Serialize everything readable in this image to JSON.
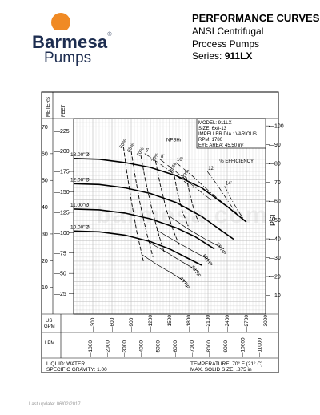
{
  "header": {
    "title": "PERFORMANCE CURVES",
    "line1": "ANSI Centrifugal",
    "line2": "Process Pumps",
    "series_label": "Series:",
    "series_model": "911LX"
  },
  "brand": {
    "name": "Barmesa",
    "reg": "®",
    "sub": "Pumps",
    "logo_icon": "sun-logo-icon",
    "colors": {
      "sun": "#f08a24",
      "text": "#1d2d50"
    }
  },
  "watermark": "barmesa.com",
  "footer": {
    "last_update": "Last update: 06/02/2017"
  },
  "chart_data": {
    "type": "line",
    "axis_units": {
      "meters": "METERS",
      "feet": "FEET",
      "psi": "PSI",
      "us_gpm": "US\nGPM",
      "lpm": "LPM"
    },
    "us_gpm_label1": "US",
    "us_gpm_label2": "GPM",
    "meters_ticks": [
      "70",
      "60",
      "50",
      "40",
      "30",
      "20",
      "10"
    ],
    "meters_values": [
      70,
      60,
      50,
      40,
      30,
      20,
      10
    ],
    "feet_ticks": [
      "225",
      "200",
      "175",
      "150",
      "125",
      "100",
      "75",
      "50",
      "25"
    ],
    "feet_values": [
      225,
      200,
      175,
      150,
      125,
      100,
      75,
      50,
      25
    ],
    "psi_ticks": [
      "100",
      "90",
      "80",
      "70",
      "60",
      "50",
      "40",
      "30",
      "20",
      "10"
    ],
    "psi_values": [
      100,
      90,
      80,
      70,
      60,
      50,
      40,
      30,
      20,
      10
    ],
    "gpm_ticks": [
      "300",
      "600",
      "900",
      "1200",
      "1500",
      "1800",
      "2100",
      "2400",
      "2700",
      "3000"
    ],
    "gpm_values": [
      300,
      600,
      900,
      1200,
      1500,
      1800,
      2100,
      2400,
      2700,
      3000
    ],
    "lpm_ticks": [
      "1000",
      "2000",
      "3000",
      "4000",
      "5000",
      "6000",
      "7000",
      "8000",
      "9000",
      "10000",
      "11000"
    ],
    "lpm_values": [
      1000,
      2000,
      3000,
      4000,
      5000,
      6000,
      7000,
      8000,
      9000,
      10000,
      11000
    ],
    "xlim_gpm": [
      0,
      3000
    ],
    "ylim_feet": [
      0,
      240
    ],
    "grid": true,
    "info_box": [
      "MODEL: 911LX",
      "SIZE:  6x8-13",
      "IMPELLER DIA.: VARIOUS",
      "RPM: 1780",
      "EYE AREA: 45.50  in²"
    ],
    "labels": {
      "npshr": "NPSHr",
      "efficiency": "% EFFICIENCY"
    },
    "series": [
      {
        "name": "13.00\"Ø",
        "x": [
          0,
          400,
          800,
          1200,
          1600,
          2000,
          2400,
          2700
        ],
        "y": [
          191,
          190,
          186,
          180,
          170,
          155,
          132,
          113
        ]
      },
      {
        "name": "12.00\"Ø",
        "x": [
          0,
          400,
          800,
          1200,
          1600,
          2000,
          2300,
          2500
        ],
        "y": [
          160,
          159,
          155,
          148,
          137,
          120,
          103,
          92
        ]
      },
      {
        "name": "11.00\"Ø",
        "x": [
          0,
          400,
          800,
          1200,
          1600,
          1900,
          2200
        ],
        "y": [
          129,
          128,
          124,
          117,
          106,
          95,
          80
        ]
      },
      {
        "name": "10.00\"Ø",
        "x": [
          0,
          400,
          800,
          1200,
          1500,
          1800,
          2000
        ],
        "y": [
          102,
          101,
          97,
          89,
          80,
          68,
          60
        ]
      }
    ],
    "efficiency_curves": [
      {
        "label": "60%",
        "x": [
          780,
          830,
          900,
          990,
          1090
        ],
        "y": [
          205,
          175,
          140,
          100,
          65
        ]
      },
      {
        "label": "65%",
        "x": [
          900,
          960,
          1040,
          1140,
          1240
        ],
        "y": [
          200,
          170,
          135,
          100,
          70
        ]
      },
      {
        "label": "70%",
        "x": [
          1050,
          1120,
          1220,
          1320,
          1420
        ],
        "y": [
          195,
          165,
          130,
          100,
          75
        ]
      },
      {
        "label": "75%",
        "x": [
          1280,
          1350,
          1450,
          1560,
          1650
        ],
        "y": [
          188,
          160,
          128,
          102,
          85
        ]
      },
      {
        "label": "80%",
        "x": [
          1560,
          1620,
          1700,
          1790
        ],
        "y": [
          176,
          150,
          126,
          108
        ]
      },
      {
        "label": "82%",
        "x": [
          1760,
          1820,
          1880,
          1950
        ],
        "y": [
          168,
          146,
          128,
          113
        ]
      }
    ],
    "npshr_curves": [
      {
        "label": "6'",
        "x": [
          1110,
          1320,
          1600,
          1870
        ],
        "y": [
          197,
          186,
          170,
          155
        ]
      },
      {
        "label": "8'",
        "x": [
          1350,
          1580,
          1860,
          2150
        ],
        "y": [
          190,
          176,
          158,
          140
        ]
      },
      {
        "label": "10'",
        "x": [
          1600,
          1850,
          2100,
          2400
        ],
        "y": [
          186,
          170,
          152,
          132
        ]
      },
      {
        "label": "12'",
        "x": [
          2090,
          2250,
          2400,
          2560
        ],
        "y": [
          175,
          158,
          140,
          122
        ]
      },
      {
        "label": "14'",
        "x": [
          2360,
          2450,
          2560,
          2680
        ],
        "y": [
          157,
          143,
          128,
          114
        ]
      }
    ],
    "hp_curves": [
      {
        "label": "75 HP",
        "x": [
          1500,
          1780,
          2060,
          2350
        ],
        "y": [
          120,
          105,
          92,
          80
        ]
      },
      {
        "label": "60 HP",
        "x": [
          1300,
          1580,
          1850,
          2140
        ],
        "y": [
          103,
          90,
          78,
          66
        ]
      },
      {
        "label": "50 HP",
        "x": [
          1180,
          1450,
          1700,
          1960
        ],
        "y": [
          88,
          76,
          64,
          52
        ]
      },
      {
        "label": "40 HP",
        "x": [
          1070,
          1300,
          1540,
          1780
        ],
        "y": [
          73,
          61,
          50,
          38
        ]
      }
    ],
    "bottom_left": [
      "LIQUID: WATER",
      "SPECIFIC GRAVITY: 1.00"
    ],
    "bottom_right": [
      "TEMPERATURE: 70° F (21° C)",
      "MAX. SOLID SIZE: .875 in"
    ]
  }
}
